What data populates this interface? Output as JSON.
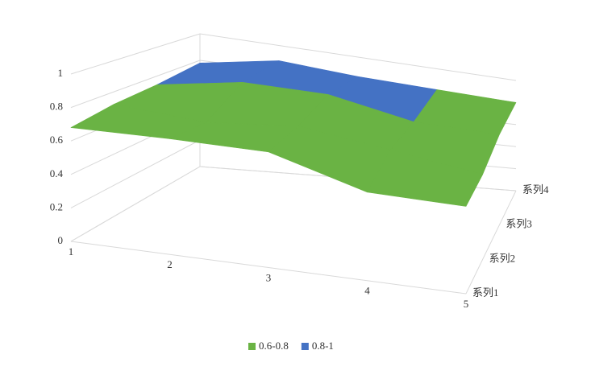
{
  "chart_data": {
    "type": "surface",
    "categories": [
      "1",
      "2",
      "3",
      "4",
      "5"
    ],
    "series": [
      {
        "name": "系列1",
        "values": [
          0.68,
          0.72,
          0.75,
          0.6,
          0.62
        ]
      },
      {
        "name": "系列2",
        "values": [
          0.72,
          0.7,
          0.78,
          0.72,
          0.65
        ]
      },
      {
        "name": "系列3",
        "values": [
          0.74,
          0.85,
          0.86,
          0.75,
          0.75
        ]
      },
      {
        "name": "系列4",
        "values": [
          0.78,
          0.88,
          0.84,
          0.82,
          0.8
        ]
      }
    ],
    "zlim": [
      0,
      1
    ],
    "zticks": [
      0,
      0.2,
      0.4,
      0.6,
      0.8,
      1
    ],
    "grid": true,
    "bands": [
      {
        "label": "0.6-0.8",
        "range": [
          0.6,
          0.8
        ],
        "color": "#6ab344"
      },
      {
        "label": "0.8-1",
        "range": [
          0.8,
          1
        ],
        "color": "#4472c4"
      }
    ],
    "legend": "bottom"
  }
}
